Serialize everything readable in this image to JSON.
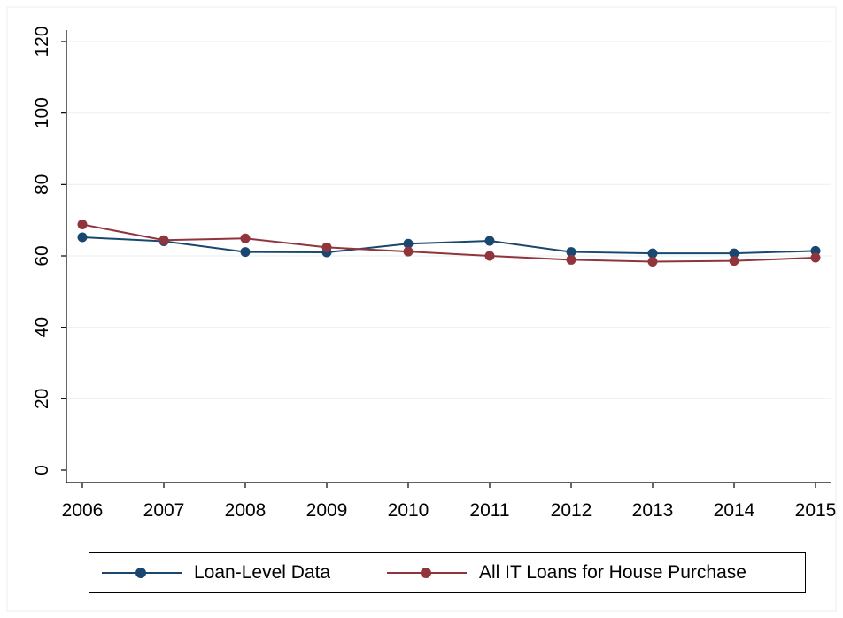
{
  "chart_data": {
    "type": "line",
    "title": "",
    "xlabel": "",
    "ylabel": "",
    "x": [
      2006,
      2007,
      2008,
      2009,
      2010,
      2011,
      2012,
      2013,
      2014,
      2015
    ],
    "xticks": [
      "2006",
      "2007",
      "2008",
      "2009",
      "2010",
      "2011",
      "2012",
      "2013",
      "2014",
      "2015"
    ],
    "yticks": [
      "0",
      "20",
      "40",
      "60",
      "80",
      "100",
      "120"
    ],
    "ylim": [
      0,
      120
    ],
    "grid": true,
    "legend_position": "bottom",
    "series": [
      {
        "name": "Loan-Level Data",
        "color": "#1a476f",
        "values": [
          65.2,
          64.1,
          61.1,
          61.0,
          63.4,
          64.2,
          61.1,
          60.7,
          60.7,
          61.4
        ]
      },
      {
        "name": "All IT Loans for House Purchase",
        "color": "#90353b",
        "values": [
          68.8,
          64.4,
          64.9,
          62.4,
          61.2,
          60.0,
          58.9,
          58.4,
          58.6,
          59.5
        ]
      }
    ]
  }
}
